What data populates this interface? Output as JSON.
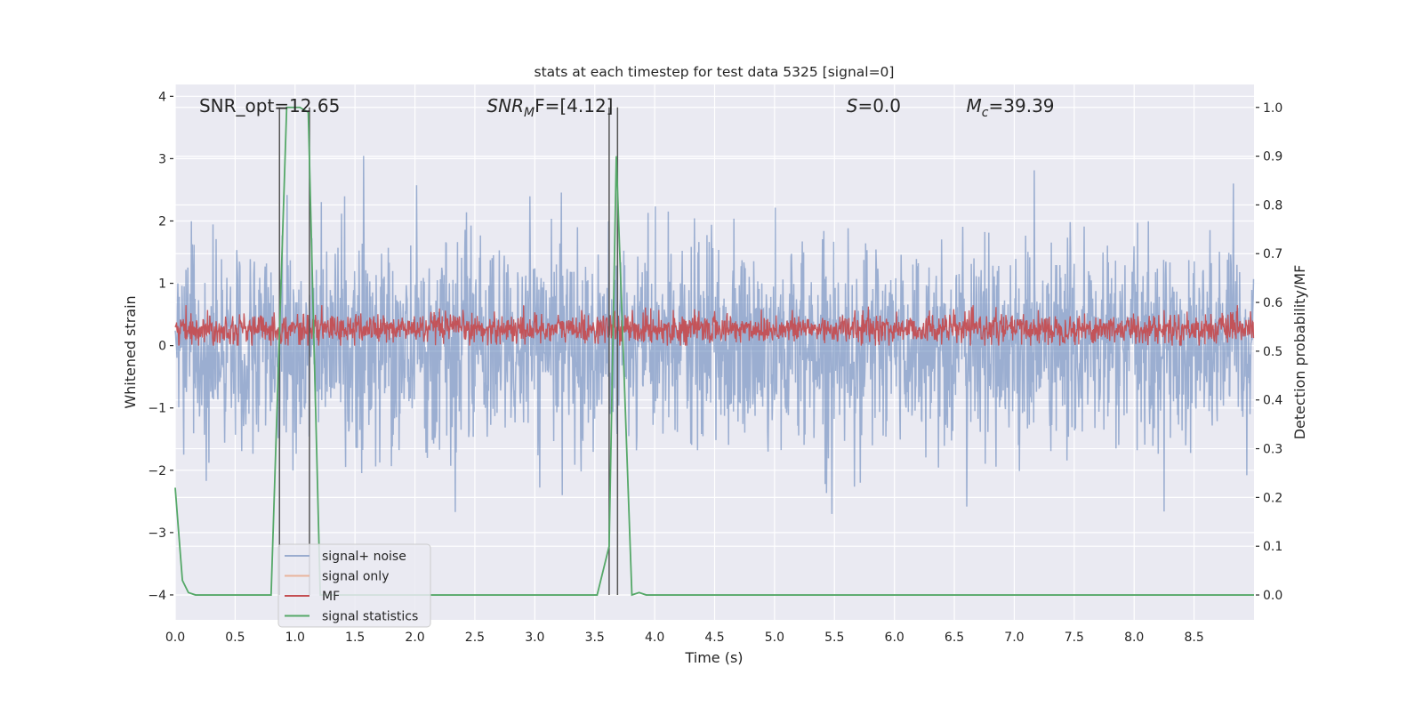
{
  "chart_data": {
    "type": "line",
    "title": "stats at each timestep for test data 5325 [signal=0]",
    "xlabel": "Time (s)",
    "ylabel_left": "Whitened strain",
    "ylabel_right": "Detection probability/MF",
    "xlim": [
      0,
      9.0
    ],
    "ylim_left": [
      -4.4,
      4.19
    ],
    "ylim_right": [
      -0.051,
      1.047
    ],
    "x_ticks": [
      "0.0",
      "0.5",
      "1.0",
      "1.5",
      "2.0",
      "2.5",
      "3.0",
      "3.5",
      "4.0",
      "4.5",
      "5.0",
      "5.5",
      "6.0",
      "6.5",
      "7.0",
      "7.5",
      "8.0",
      "8.5"
    ],
    "y_ticks_left": [
      "4",
      "3",
      "2",
      "1",
      "0",
      "−1",
      "−2",
      "−3",
      "−4"
    ],
    "y_ticks_right": [
      "1.0",
      "0.9",
      "0.8",
      "0.7",
      "0.6",
      "0.5",
      "0.4",
      "0.3",
      "0.2",
      "0.1",
      "0.0"
    ],
    "grid": true,
    "background": "#eaeaf2",
    "annotations": [
      {
        "text": "SNR_opt=12.65",
        "x": 0.2,
        "y": 3.85
      },
      {
        "text": "SNR",
        "sub": "M",
        "tail": "F=[4.12]",
        "x": 2.6,
        "y": 3.85,
        "italic": true
      },
      {
        "text": "S",
        "tail": "=0.0",
        "x": 5.6,
        "y": 3.85,
        "italic": true
      },
      {
        "text": "M",
        "sub": "c",
        "tail": "=39.39",
        "x": 6.6,
        "y": 3.85,
        "italic": true
      }
    ],
    "legend": {
      "placement": "lower-left",
      "entries": [
        {
          "label": "signal+ noise",
          "color": "#9aaccf"
        },
        {
          "label": "signal only",
          "color": "#e9b49c"
        },
        {
          "label": "MF",
          "color": "#c44e52"
        },
        {
          "label": "signal statistics",
          "color": "#55a868"
        }
      ]
    },
    "series": [
      {
        "name": "signal+ noise",
        "axis": "left",
        "color": "#9aaccf",
        "approx_std": 0.8,
        "approx_range": [
          -4.0,
          3.8
        ]
      },
      {
        "name": "MF",
        "axis": "left",
        "color": "#c44e52",
        "approx_mean": 0.27,
        "approx_range": [
          0.0,
          0.65
        ]
      },
      {
        "name": "signal statistics",
        "axis": "right",
        "color": "#55a868",
        "x": [
          0.0,
          0.06,
          0.11,
          0.17,
          0.8,
          0.93,
          1.0,
          1.04,
          1.11,
          1.21,
          1.3,
          3.52,
          3.62,
          3.68,
          3.81,
          3.87,
          3.93,
          9.0
        ],
        "y": [
          0.22,
          0.03,
          0.005,
          0.0,
          0.0,
          1.0,
          1.0,
          1.0,
          0.99,
          0.0,
          0.0,
          0.0,
          0.1,
          0.9,
          0.0,
          0.005,
          0.0,
          0.0
        ]
      }
    ],
    "vertical_lines": {
      "color": "#555555",
      "x": [
        0.87,
        1.12,
        3.62,
        3.69
      ],
      "y_range_right": [
        0.0,
        1.0
      ]
    }
  }
}
